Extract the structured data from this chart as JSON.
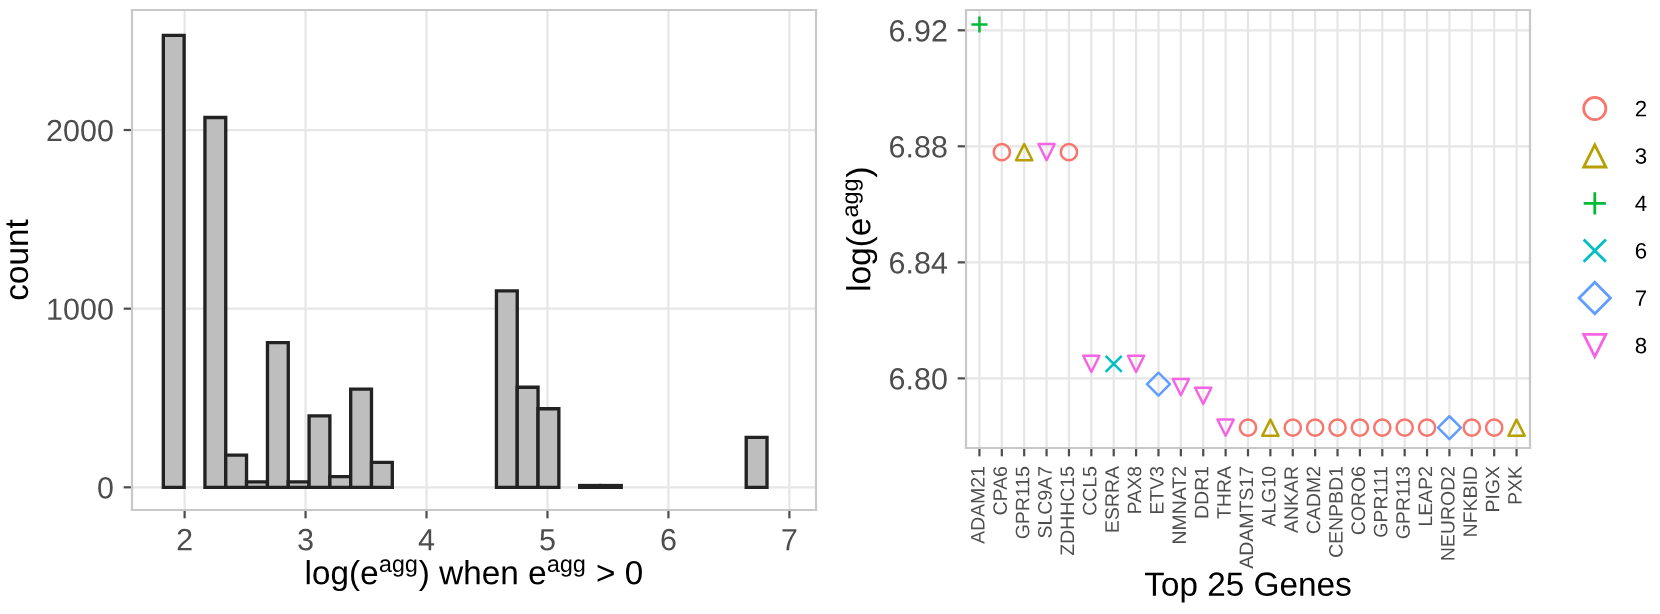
{
  "chart_data": [
    {
      "type": "histogram",
      "xlabel": "log(e$^{agg}$) when e$^{agg}$ > 0",
      "ylabel": "count",
      "bins": [
        1.824,
        1.996,
        2.168,
        2.34,
        2.512,
        2.685,
        2.857,
        3.029,
        3.201,
        3.373,
        3.545,
        3.717,
        3.889,
        4.061,
        4.233,
        4.406,
        4.578,
        4.75,
        4.922,
        5.094,
        5.266,
        5.438,
        5.61,
        5.782,
        5.954,
        6.127,
        6.299,
        6.471,
        6.643,
        6.815,
        6.987
      ],
      "values": [
        2530,
        0,
        2070,
        180,
        30,
        810,
        30,
        400,
        60,
        550,
        140,
        0,
        0,
        0,
        0,
        0,
        1100,
        560,
        440,
        0,
        10,
        10,
        0,
        0,
        0,
        0,
        0,
        0,
        280,
        0
      ],
      "color": "#bebebe",
      "xlim": [
        1.565,
        7.22
      ],
      "ylim": [
        -127,
        2672
      ],
      "xticks": [
        2,
        3,
        4,
        5,
        6,
        7
      ],
      "yticks": [
        0,
        1000,
        2000
      ],
      "grid": true
    },
    {
      "type": "scatter",
      "xlabel": "Top 25 Genes",
      "ylabel": "log(e$^{agg}$)",
      "categories": [
        "ADAM21",
        "CPA6",
        "GPR115",
        "SLC9A7",
        "ZDHHC15",
        "CCL5",
        "ESRRA",
        "PAX8",
        "ETV3",
        "NMNAT2",
        "DDR1",
        "THRA",
        "ADAMTS17",
        "ALG10",
        "ANKAR",
        "CADM2",
        "CENPBD1",
        "CORO6",
        "GPR111",
        "GPR113",
        "LEAP2",
        "NEUROD2",
        "NFKBID",
        "PIGX",
        "PXK"
      ],
      "series": [
        {
          "name": "2",
          "color": "#f8766d",
          "marker": "circle",
          "values": [
            null,
            6.878,
            null,
            null,
            6.878,
            null,
            null,
            null,
            null,
            null,
            null,
            null,
            6.783,
            null,
            6.783,
            6.783,
            6.783,
            6.783,
            6.783,
            6.783,
            6.783,
            null,
            6.783,
            6.783,
            null
          ]
        },
        {
          "name": "3",
          "color": "#b79f00",
          "marker": "triangle",
          "values": [
            null,
            null,
            6.878,
            null,
            null,
            null,
            null,
            null,
            null,
            null,
            null,
            null,
            null,
            6.783,
            null,
            null,
            null,
            null,
            null,
            null,
            null,
            null,
            null,
            null,
            6.783
          ]
        },
        {
          "name": "4",
          "color": "#00ba38",
          "marker": "plus",
          "values": [
            6.922,
            null,
            null,
            null,
            null,
            null,
            null,
            null,
            null,
            null,
            null,
            null,
            null,
            null,
            null,
            null,
            null,
            null,
            null,
            null,
            null,
            null,
            null,
            null,
            null
          ]
        },
        {
          "name": "6",
          "color": "#00bfc4",
          "marker": "cross",
          "values": [
            null,
            null,
            null,
            null,
            null,
            null,
            6.805,
            null,
            null,
            null,
            null,
            null,
            null,
            null,
            null,
            null,
            null,
            null,
            null,
            null,
            null,
            null,
            null,
            null,
            null
          ]
        },
        {
          "name": "7",
          "color": "#619cff",
          "marker": "diamond",
          "values": [
            null,
            null,
            null,
            null,
            null,
            null,
            null,
            null,
            6.798,
            null,
            null,
            null,
            null,
            null,
            null,
            null,
            null,
            null,
            null,
            null,
            null,
            6.783,
            null,
            null,
            null
          ]
        },
        {
          "name": "8",
          "color": "#f564e3",
          "marker": "triangle_down",
          "values": [
            null,
            null,
            null,
            6.878,
            null,
            6.805,
            null,
            6.805,
            null,
            6.797,
            6.794,
            6.783,
            null,
            null,
            null,
            null,
            null,
            null,
            null,
            null,
            null,
            null,
            null,
            null,
            null
          ]
        }
      ],
      "ylim": [
        6.776,
        6.927
      ],
      "yticks": [
        {
          "value": 6.8,
          "label": "6.80"
        },
        {
          "value": 6.84,
          "label": "6.84"
        },
        {
          "value": 6.88,
          "label": "6.88"
        },
        {
          "value": 6.92,
          "label": "6.92"
        }
      ],
      "grid": true,
      "legend": "right"
    }
  ]
}
